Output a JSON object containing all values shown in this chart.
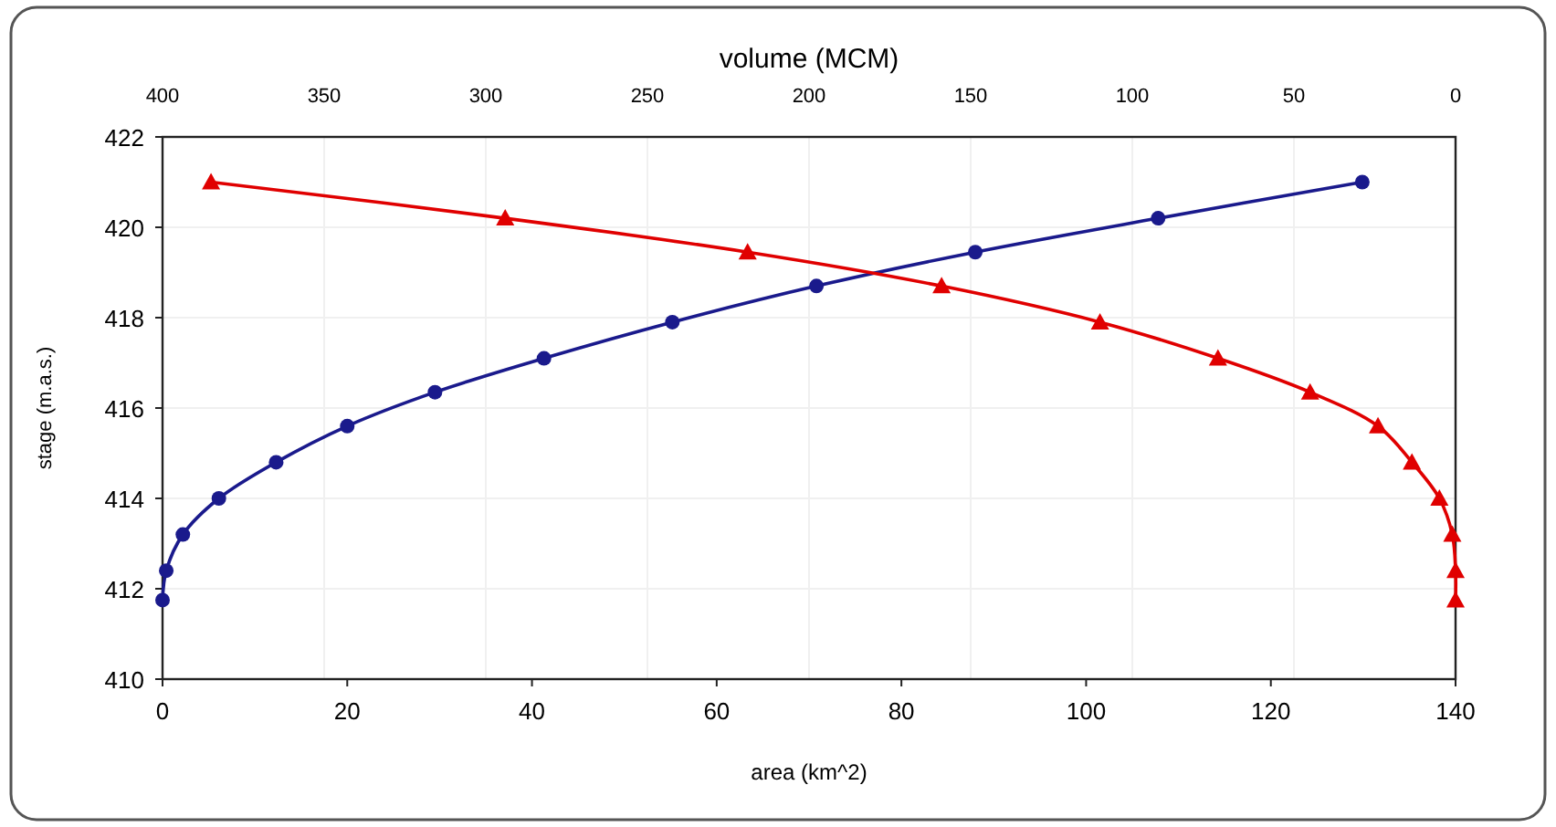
{
  "chart_data": {
    "type": "line",
    "xlabel": "area (km^2)",
    "x2label": "volume (MCM)",
    "ylabel": "stage (m.a.s.)",
    "xlim": [
      0,
      140
    ],
    "xticks": [
      0,
      20,
      40,
      60,
      80,
      100,
      120,
      140
    ],
    "x2lim": [
      400,
      0
    ],
    "x2ticks": [
      400,
      350,
      300,
      250,
      200,
      150,
      100,
      50,
      0
    ],
    "ylim": [
      410,
      422
    ],
    "yticks": [
      410,
      412,
      414,
      416,
      418,
      420,
      422
    ],
    "grid": true,
    "series": [
      {
        "color": "#1a1a8c",
        "marker": "circle",
        "x": [
          0,
          0.4,
          2.2,
          6.1,
          12.3,
          20,
          29.5,
          41.3,
          55.2,
          70.8,
          88,
          107.8,
          129.9
        ],
        "values": [
          411.75,
          412.4,
          413.2,
          414,
          414.8,
          415.6,
          416.35,
          417.1,
          417.9,
          418.7,
          419.45,
          420.2,
          421
        ]
      },
      {
        "color": "#e00000",
        "marker": "triangle",
        "axis": "x2",
        "x": [
          0,
          0,
          1,
          5,
          13.5,
          24,
          45,
          73.5,
          110,
          159,
          219,
          294,
          385
        ],
        "values": [
          411.75,
          412.4,
          413.2,
          414,
          414.8,
          415.6,
          416.35,
          417.1,
          417.9,
          418.7,
          419.45,
          420.2,
          421
        ]
      }
    ]
  }
}
